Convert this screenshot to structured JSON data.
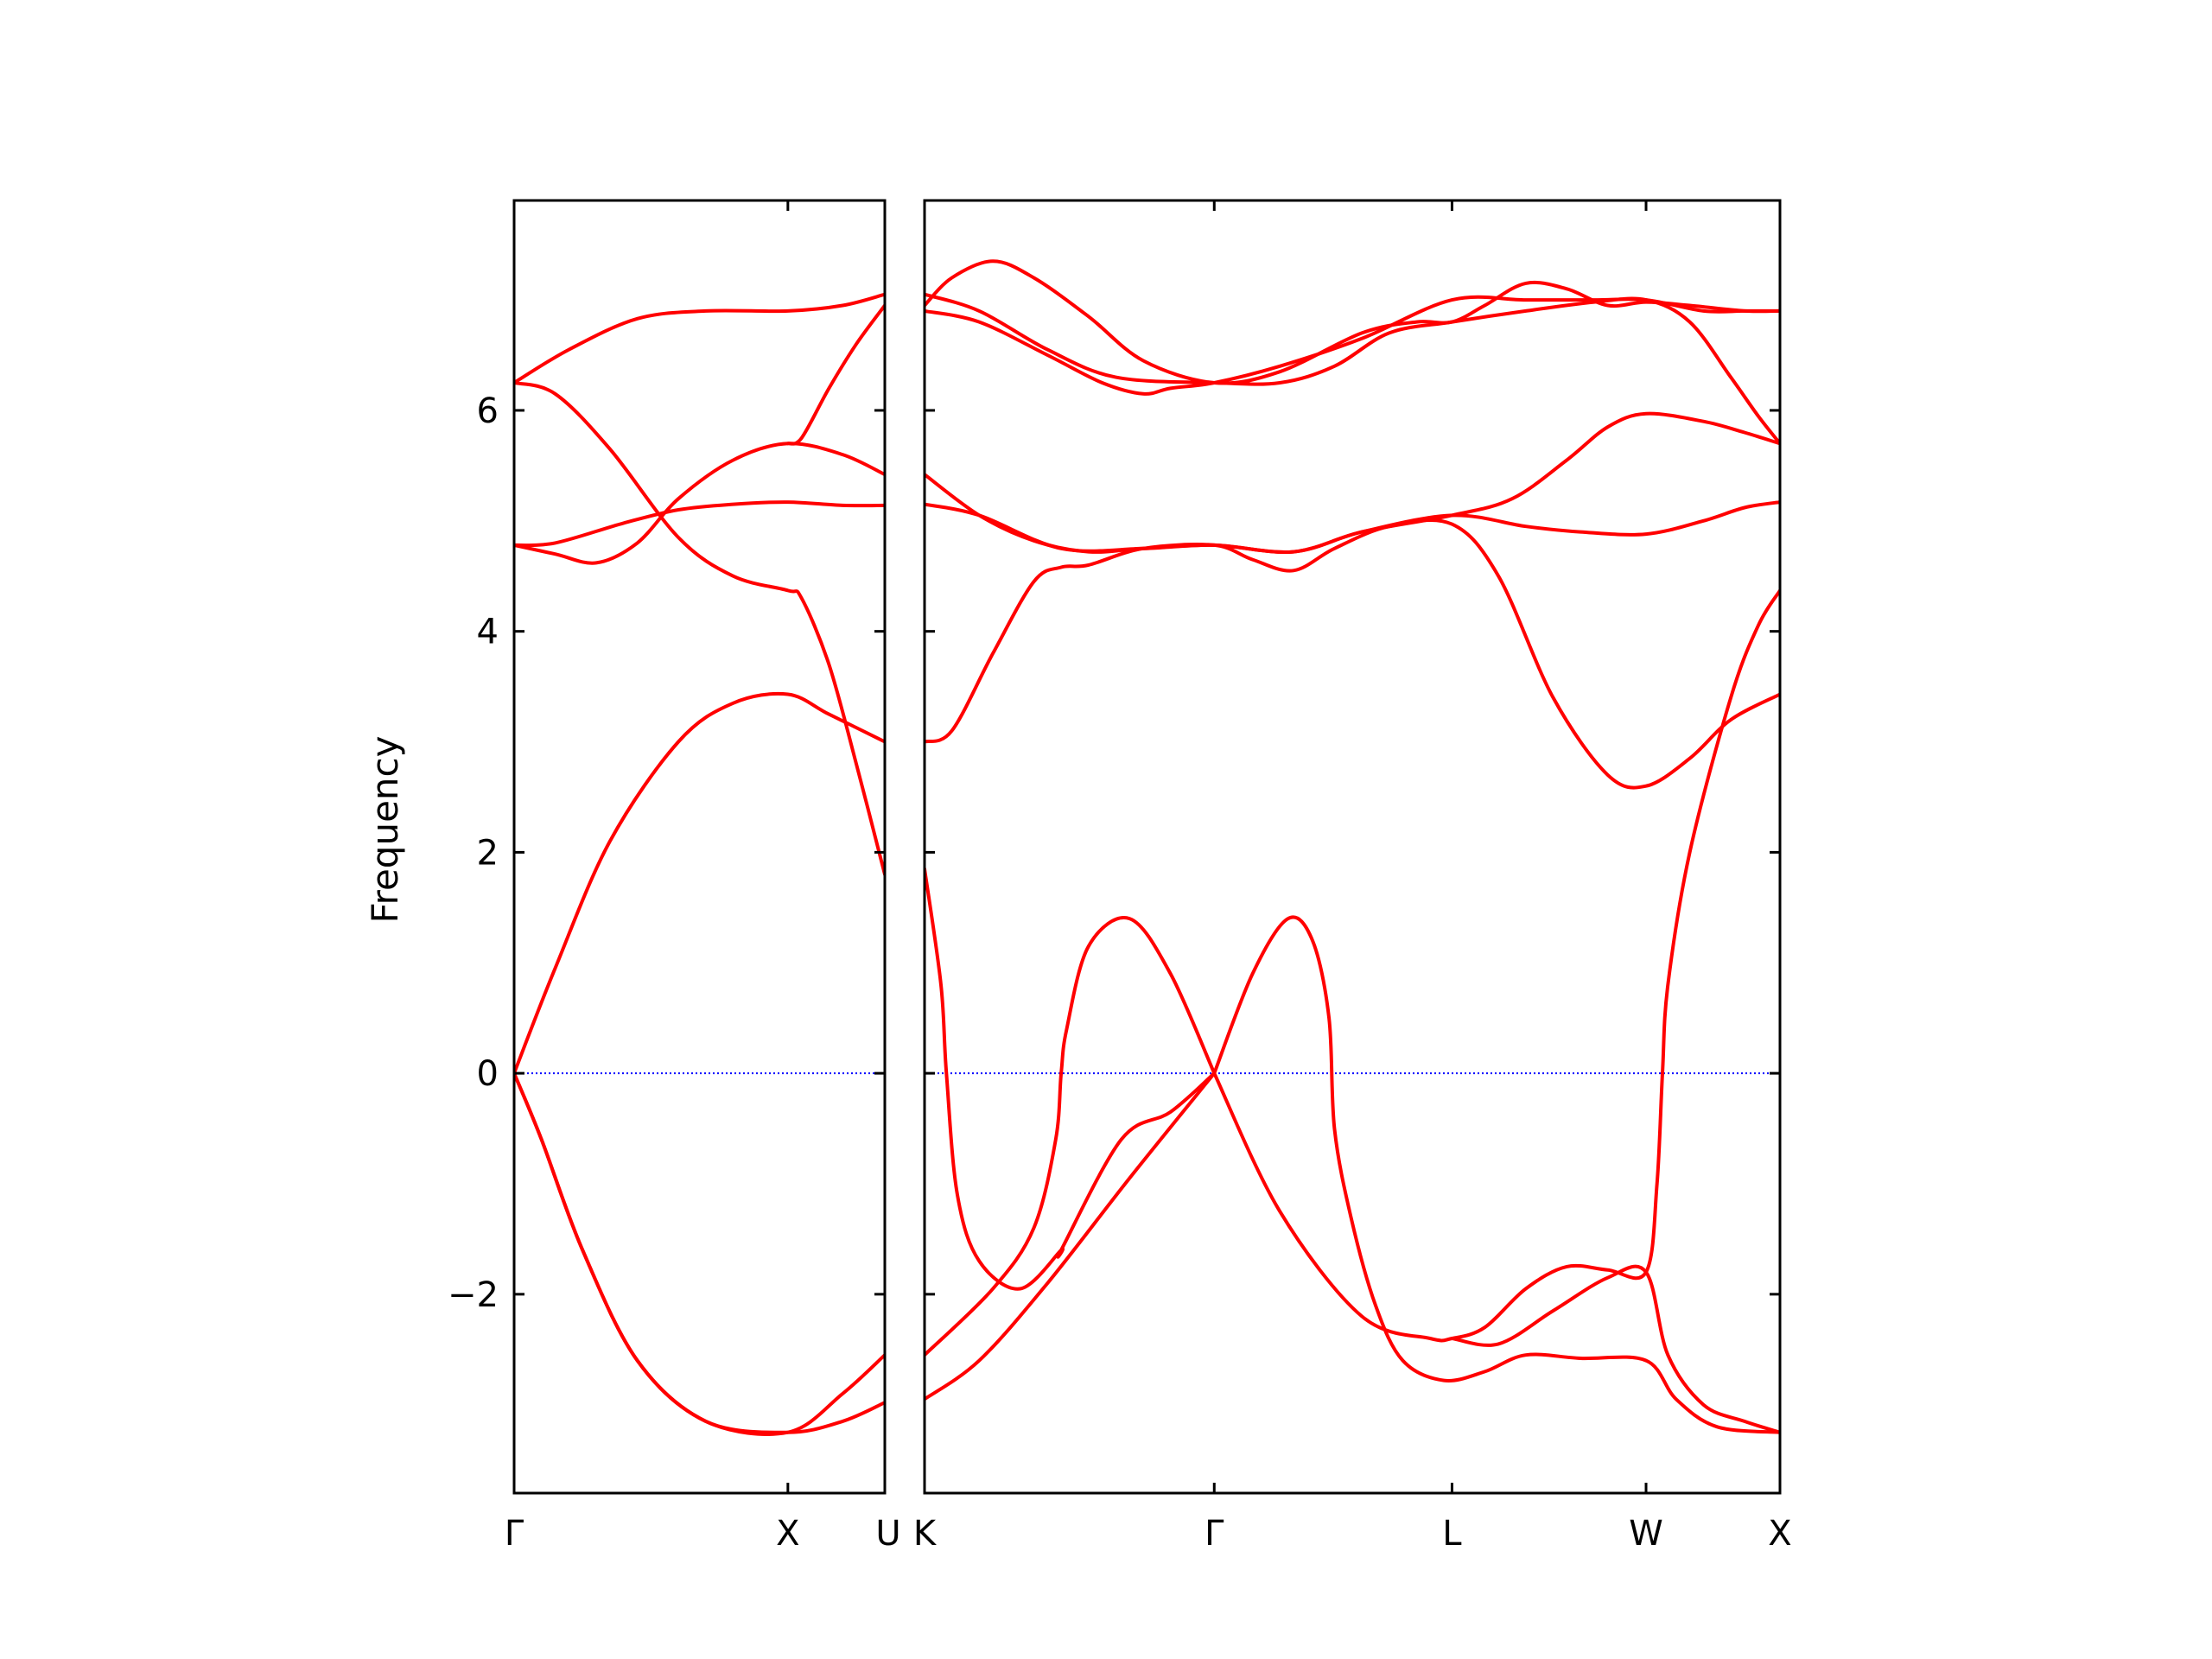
{
  "chart_data": {
    "type": "line",
    "ylabel": "Frequency",
    "ylim": [
      -3.8,
      7.9
    ],
    "yticks": [
      -2,
      0,
      2,
      4,
      6
    ],
    "ytick_labels": [
      "−2",
      "0",
      "2",
      "4",
      "6"
    ],
    "zero_line": {
      "y": 0,
      "style": "dotted",
      "color": "#0000ff"
    },
    "band_color": "#ff0000",
    "panels": [
      {
        "path": [
          "Γ",
          "X",
          "U"
        ],
        "x_range": [
          0,
          1.354
        ],
        "tick_positions": [
          0,
          1.0
        ],
        "tick_labels": [
          "Γ",
          "X"
        ],
        "bands": [
          [
            [
              0,
              0
            ],
            [
              0.1,
              -0.6
            ],
            [
              0.25,
              -1.6
            ],
            [
              0.45,
              -2.6
            ],
            [
              0.7,
              -3.15
            ],
            [
              1.0,
              -3.25
            ],
            [
              1.2,
              -2.9
            ],
            [
              1.354,
              -2.55
            ]
          ],
          [
            [
              0,
              0
            ],
            [
              0.1,
              -0.6
            ],
            [
              0.25,
              -1.6
            ],
            [
              0.45,
              -2.6
            ],
            [
              0.7,
              -3.15
            ],
            [
              1.0,
              -3.25
            ],
            [
              1.2,
              -3.15
            ],
            [
              1.354,
              -2.98
            ]
          ],
          [
            [
              0,
              0
            ],
            [
              0.15,
              0.95
            ],
            [
              0.35,
              2.1
            ],
            [
              0.6,
              3.0
            ],
            [
              0.8,
              3.35
            ],
            [
              1.0,
              3.43
            ],
            [
              1.15,
              3.25
            ],
            [
              1.354,
              3.0
            ]
          ],
          [
            [
              0,
              4.78
            ],
            [
              0.15,
              4.8
            ],
            [
              0.4,
              4.98
            ],
            [
              0.6,
              5.1
            ],
            [
              0.8,
              5.15
            ],
            [
              1.0,
              5.17
            ],
            [
              1.2,
              5.14
            ],
            [
              1.354,
              5.14
            ]
          ],
          [
            [
              0,
              4.78
            ],
            [
              0.15,
              4.7
            ],
            [
              0.3,
              4.62
            ],
            [
              0.45,
              4.8
            ],
            [
              0.6,
              5.2
            ],
            [
              0.8,
              5.55
            ],
            [
              1.0,
              5.7
            ],
            [
              1.2,
              5.6
            ],
            [
              1.354,
              5.42
            ]
          ],
          [
            [
              0,
              6.25
            ],
            [
              0.15,
              6.15
            ],
            [
              0.35,
              5.65
            ],
            [
              0.6,
              4.85
            ],
            [
              0.8,
              4.5
            ],
            [
              1.0,
              4.37
            ],
            [
              1.05,
              4.3
            ],
            [
              1.15,
              3.7
            ],
            [
              1.25,
              2.8
            ],
            [
              1.354,
              1.8
            ]
          ],
          [
            [
              0,
              6.25
            ],
            [
              0.2,
              6.55
            ],
            [
              0.45,
              6.83
            ],
            [
              0.7,
              6.9
            ],
            [
              1.0,
              6.9
            ],
            [
              1.2,
              6.95
            ],
            [
              1.354,
              7.05
            ]
          ],
          [
            [
              1.0,
              5.7
            ],
            [
              1.05,
              5.75
            ],
            [
              1.15,
              6.2
            ],
            [
              1.25,
              6.6
            ],
            [
              1.354,
              6.95
            ]
          ]
        ]
      },
      {
        "path": [
          "K",
          "Γ",
          "L",
          "W",
          "X"
        ],
        "x_range": [
          0,
          3.13
        ],
        "tick_positions": [
          0,
          1.06,
          1.93,
          2.64,
          3.13
        ],
        "tick_labels": [
          "K",
          "Γ",
          "L",
          "W",
          "X"
        ],
        "bands": [
          [
            [
              0,
              1.85
            ],
            [
              0.06,
              0.8
            ],
            [
              0.08,
              0.0
            ],
            [
              0.12,
              -1.1
            ],
            [
              0.2,
              -1.7
            ],
            [
              0.35,
              -1.95
            ],
            [
              0.5,
              -1.6
            ],
            [
              0.5,
              -1.6
            ],
            [
              0.72,
              -0.6
            ],
            [
              0.9,
              -0.35
            ],
            [
              1.06,
              0
            ]
          ],
          [
            [
              0,
              -2.95
            ],
            [
              0.2,
              -2.6
            ],
            [
              0.45,
              -1.9
            ],
            [
              0.75,
              -0.95
            ],
            [
              1.06,
              0.0
            ]
          ],
          [
            [
              0,
              -2.55
            ],
            [
              0.25,
              -1.95
            ],
            [
              0.4,
              -1.4
            ],
            [
              0.48,
              -0.6
            ],
            [
              0.5,
              0.0
            ],
            [
              0.52,
              0.4
            ],
            [
              0.6,
              1.15
            ],
            [
              0.75,
              1.4
            ],
            [
              0.9,
              0.9
            ],
            [
              1.06,
              0.0
            ]
          ],
          [
            [
              1.06,
              0
            ],
            [
              1.2,
              0.9
            ],
            [
              1.33,
              1.4
            ],
            [
              1.42,
              1.2
            ],
            [
              1.48,
              0.5
            ],
            [
              1.5,
              -0.5
            ],
            [
              1.56,
              -1.3
            ],
            [
              1.65,
              -2.1
            ],
            [
              1.75,
              -2.6
            ],
            [
              1.9,
              -2.78
            ],
            [
              2.05,
              -2.7
            ],
            [
              2.2,
              -2.55
            ],
            [
              2.4,
              -2.58
            ],
            [
              2.64,
              -2.6
            ],
            [
              2.75,
              -2.95
            ],
            [
              2.9,
              -3.2
            ],
            [
              3.13,
              -3.25
            ]
          ],
          [
            [
              1.06,
              0
            ],
            [
              1.3,
              -1.25
            ],
            [
              1.6,
              -2.2
            ],
            [
              1.85,
              -2.4
            ],
            [
              1.93,
              -2.4
            ],
            [
              2.05,
              -2.3
            ],
            [
              2.2,
              -1.95
            ],
            [
              2.35,
              -1.75
            ],
            [
              2.5,
              -1.78
            ],
            [
              2.64,
              -1.8
            ],
            [
              2.68,
              -1.0
            ],
            [
              2.7,
              0.0
            ],
            [
              2.72,
              0.8
            ],
            [
              2.8,
              2.0
            ],
            [
              2.95,
              3.4
            ],
            [
              3.05,
              4.05
            ],
            [
              3.13,
              4.37
            ]
          ],
          [
            [
              1.93,
              -2.4
            ],
            [
              2.1,
              -2.45
            ],
            [
              2.3,
              -2.15
            ],
            [
              2.5,
              -1.85
            ],
            [
              2.64,
              -1.8
            ],
            [
              2.72,
              -2.55
            ],
            [
              2.85,
              -3.0
            ],
            [
              3.0,
              -3.15
            ],
            [
              3.13,
              -3.25
            ]
          ],
          [
            [
              0,
              3.0
            ],
            [
              0.1,
              3.1
            ],
            [
              0.25,
              3.8
            ],
            [
              0.4,
              4.45
            ],
            [
              0.5,
              4.58
            ],
            [
              0.6,
              4.6
            ],
            [
              0.8,
              4.75
            ],
            [
              1.06,
              4.78
            ],
            [
              1.2,
              4.65
            ],
            [
              1.35,
              4.55
            ],
            [
              1.5,
              4.75
            ],
            [
              1.7,
              4.95
            ],
            [
              1.93,
              4.97
            ],
            [
              2.1,
              4.5
            ],
            [
              2.3,
              3.4
            ],
            [
              2.5,
              2.7
            ],
            [
              2.64,
              2.6
            ],
            [
              2.8,
              2.85
            ],
            [
              2.95,
              3.2
            ],
            [
              3.13,
              3.43
            ]
          ],
          [
            [
              0,
              5.15
            ],
            [
              0.2,
              5.05
            ],
            [
              0.5,
              4.75
            ],
            [
              0.8,
              4.75
            ],
            [
              1.06,
              4.78
            ],
            [
              1.35,
              4.72
            ],
            [
              1.6,
              4.9
            ],
            [
              1.93,
              5.05
            ],
            [
              2.2,
              4.95
            ],
            [
              2.4,
              4.9
            ],
            [
              2.64,
              4.88
            ],
            [
              2.85,
              5.0
            ],
            [
              3.0,
              5.12
            ],
            [
              3.13,
              5.17
            ]
          ],
          [
            [
              0,
              5.42
            ],
            [
              0.2,
              5.05
            ],
            [
              0.4,
              4.82
            ],
            [
              0.6,
              4.72
            ],
            [
              0.8,
              4.75
            ],
            [
              1.06,
              4.78
            ],
            [
              1.35,
              4.72
            ],
            [
              1.6,
              4.9
            ],
            [
              1.93,
              5.05
            ],
            [
              2.15,
              5.2
            ],
            [
              2.35,
              5.55
            ],
            [
              2.5,
              5.85
            ],
            [
              2.64,
              5.97
            ],
            [
              2.85,
              5.9
            ],
            [
              3.0,
              5.8
            ],
            [
              3.13,
              5.7
            ]
          ],
          [
            [
              0,
              6.95
            ],
            [
              0.1,
              7.2
            ],
            [
              0.25,
              7.35
            ],
            [
              0.4,
              7.2
            ],
            [
              0.6,
              6.85
            ],
            [
              0.8,
              6.45
            ],
            [
              1.06,
              6.25
            ],
            [
              1.3,
              6.35
            ],
            [
              1.6,
              6.7
            ],
            [
              1.8,
              6.8
            ],
            [
              1.93,
              6.8
            ],
            [
              2.05,
              6.95
            ],
            [
              2.2,
              7.15
            ],
            [
              2.35,
              7.1
            ],
            [
              2.5,
              6.95
            ],
            [
              2.64,
              6.98
            ],
            [
              2.8,
              6.95
            ],
            [
              3.0,
              6.9
            ],
            [
              3.13,
              6.9
            ]
          ],
          [
            [
              0,
              6.9
            ],
            [
              0.2,
              6.8
            ],
            [
              0.45,
              6.5
            ],
            [
              0.65,
              6.25
            ],
            [
              0.8,
              6.15
            ],
            [
              0.9,
              6.2
            ],
            [
              1.06,
              6.25
            ],
            [
              1.3,
              6.4
            ],
            [
              1.6,
              6.65
            ],
            [
              1.93,
              7.0
            ],
            [
              2.2,
              7.0
            ],
            [
              2.45,
              7.0
            ],
            [
              2.64,
              7.0
            ],
            [
              2.85,
              6.9
            ],
            [
              3.0,
              6.9
            ],
            [
              3.13,
              6.9
            ]
          ],
          [
            [
              0,
              7.05
            ],
            [
              0.2,
              6.9
            ],
            [
              0.45,
              6.55
            ],
            [
              0.7,
              6.3
            ],
            [
              1.06,
              6.25
            ],
            [
              1.3,
              6.25
            ],
            [
              1.5,
              6.4
            ],
            [
              1.7,
              6.7
            ],
            [
              1.93,
              6.8
            ],
            [
              2.2,
              6.9
            ],
            [
              2.45,
              6.98
            ],
            [
              2.64,
              7.0
            ],
            [
              2.8,
              6.8
            ],
            [
              2.95,
              6.3
            ],
            [
              3.05,
              5.95
            ],
            [
              3.13,
              5.7
            ]
          ]
        ]
      }
    ]
  }
}
